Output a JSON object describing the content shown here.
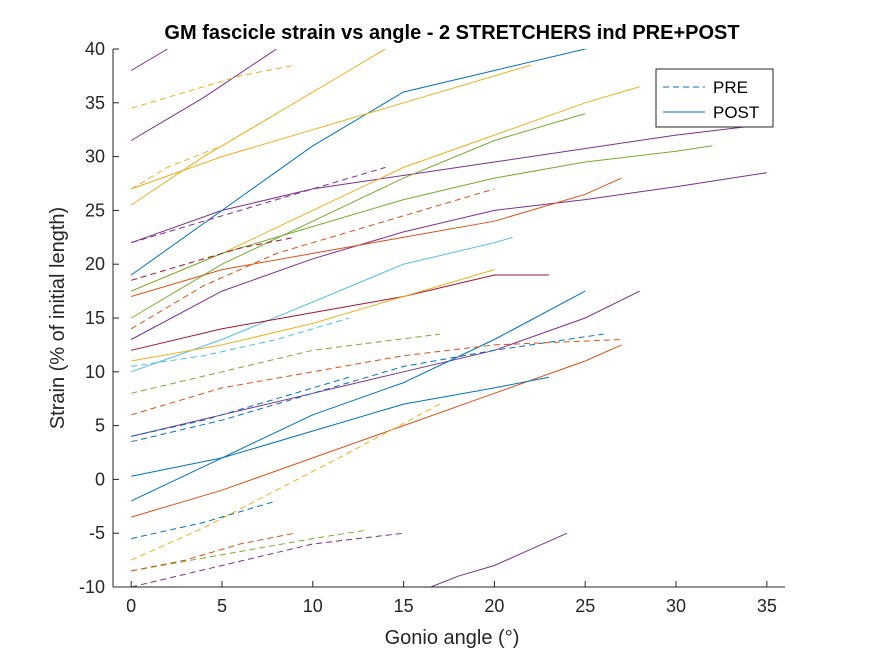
{
  "chart_data": {
    "type": "line",
    "title": "GM fascicle strain vs angle - 2 STRETCHERS ind PRE+POST",
    "xlabel": "Gonio angle (°)",
    "ylabel": "Strain (% of initial length)",
    "xlim": [
      -1,
      36
    ],
    "ylim": [
      -10,
      40
    ],
    "xticks": [
      0,
      5,
      10,
      15,
      20,
      25,
      30,
      35
    ],
    "yticks": [
      -10,
      -5,
      0,
      5,
      10,
      15,
      20,
      25,
      30,
      35,
      40
    ],
    "grid": false,
    "legend": {
      "position": "top-right",
      "entries": [
        {
          "label": "PRE",
          "style": "dashed",
          "color": "#0072BD"
        },
        {
          "label": "POST",
          "style": "solid",
          "color": "#0072BD"
        }
      ]
    },
    "colors": [
      "#0072BD",
      "#D95319",
      "#EDB120",
      "#7E2F8E",
      "#77AC30",
      "#4DBEEE",
      "#A2142F"
    ],
    "series": [
      {
        "color": "#7E2F8E",
        "style": "solid",
        "x": [
          0,
          5,
          10,
          20,
          30,
          35
        ],
        "y": [
          22,
          25,
          27,
          29.5,
          32,
          33
        ]
      },
      {
        "color": "#0072BD",
        "style": "solid",
        "x": [
          0,
          5,
          10,
          15,
          20,
          25,
          30
        ],
        "y": [
          19,
          25,
          31,
          36,
          38,
          40,
          42
        ]
      },
      {
        "color": "#EDB120",
        "style": "solid",
        "x": [
          0,
          4,
          8,
          12,
          14
        ],
        "y": [
          25.5,
          30,
          34,
          38,
          40
        ]
      },
      {
        "color": "#7E2F8E",
        "style": "solid",
        "x": [
          0,
          4,
          8
        ],
        "y": [
          31.5,
          35.5,
          40
        ]
      },
      {
        "color": "#7E2F8E",
        "style": "solid",
        "x": [
          0,
          2
        ],
        "y": [
          38,
          40
        ]
      },
      {
        "color": "#EDB120",
        "style": "solid",
        "x": [
          0,
          5,
          10,
          15,
          20,
          25,
          28
        ],
        "y": [
          17.5,
          21,
          25,
          29,
          32,
          35,
          36.5
        ]
      },
      {
        "color": "#EDB120",
        "style": "solid",
        "x": [
          0,
          5,
          10,
          15,
          20,
          22
        ],
        "y": [
          27,
          30,
          32.5,
          35,
          37.5,
          38.5
        ]
      },
      {
        "color": "#77AC30",
        "style": "solid",
        "x": [
          0,
          5,
          10,
          15,
          20,
          25,
          30,
          32
        ],
        "y": [
          17.5,
          21,
          23.5,
          26,
          28,
          29.5,
          30.5,
          31
        ]
      },
      {
        "color": "#77AC30",
        "style": "solid",
        "x": [
          0,
          5,
          10,
          15,
          20,
          25
        ],
        "y": [
          15,
          20,
          24,
          28,
          31.5,
          34
        ]
      },
      {
        "color": "#7E2F8E",
        "style": "solid",
        "x": [
          0,
          5,
          10,
          15,
          20,
          25,
          30,
          35
        ],
        "y": [
          13,
          17.5,
          20.5,
          23,
          25,
          26,
          27.2,
          28.5
        ]
      },
      {
        "color": "#D95319",
        "style": "solid",
        "x": [
          0,
          5,
          10,
          15,
          20,
          25,
          27
        ],
        "y": [
          17,
          19.5,
          21,
          22.5,
          24,
          26.5,
          28
        ]
      },
      {
        "color": "#4DBEEE",
        "style": "solid",
        "x": [
          0,
          5,
          10,
          15,
          20,
          21
        ],
        "y": [
          10,
          13,
          16.5,
          20,
          22,
          22.5
        ]
      },
      {
        "color": "#A2142F",
        "style": "solid",
        "x": [
          0,
          5,
          10,
          15,
          20,
          23
        ],
        "y": [
          12,
          14,
          15.5,
          17,
          19,
          19
        ]
      },
      {
        "color": "#EDB120",
        "style": "solid",
        "x": [
          0,
          5,
          10,
          15,
          20
        ],
        "y": [
          11,
          12.5,
          14.5,
          17,
          19.5
        ]
      },
      {
        "color": "#7E2F8E",
        "style": "solid",
        "x": [
          0,
          5,
          10,
          15,
          20,
          25,
          28
        ],
        "y": [
          4,
          6,
          8,
          10,
          12,
          15,
          17.5
        ]
      },
      {
        "color": "#0072BD",
        "style": "solid",
        "x": [
          0,
          5,
          10,
          15,
          20,
          25
        ],
        "y": [
          -2,
          2,
          6,
          9,
          13,
          17.5
        ]
      },
      {
        "color": "#D95319",
        "style": "solid",
        "x": [
          0,
          5,
          10,
          15,
          20,
          25,
          27
        ],
        "y": [
          -3.5,
          -1,
          2,
          5,
          8,
          11,
          12.5
        ]
      },
      {
        "color": "#0072BD",
        "style": "solid",
        "x": [
          0,
          5,
          10,
          15,
          20,
          23
        ],
        "y": [
          0.3,
          2,
          4.5,
          7,
          8.5,
          9.5
        ]
      },
      {
        "color": "#7E2F8E",
        "style": "solid",
        "x": [
          16.5,
          18,
          20,
          22,
          24
        ],
        "y": [
          -10,
          -9,
          -8,
          -6.5,
          -5
        ]
      },
      {
        "color": "#D95319",
        "style": "dashed",
        "x": [
          0,
          4,
          8,
          12,
          16,
          20
        ],
        "y": [
          14,
          18,
          21,
          23,
          25,
          27
        ]
      },
      {
        "color": "#0072BD",
        "style": "dashed",
        "x": [
          0,
          4,
          8,
          12
        ],
        "y": [
          4,
          5.5,
          7.5,
          9.5
        ]
      },
      {
        "color": "#EDB120",
        "style": "dashed",
        "x": [
          0,
          2,
          5,
          8
        ],
        "y": [
          27,
          29,
          31,
          34
        ]
      },
      {
        "color": "#77AC30",
        "style": "dashed",
        "x": [
          0,
          5,
          10,
          17
        ],
        "y": [
          8,
          10,
          12,
          13.5
        ]
      },
      {
        "color": "#0072BD",
        "style": "dashed",
        "x": [
          0,
          5,
          10,
          15,
          20,
          26
        ],
        "y": [
          3.5,
          5.5,
          8,
          10.5,
          12,
          13.5
        ]
      },
      {
        "color": "#D95319",
        "style": "dashed",
        "x": [
          0,
          5,
          10,
          15,
          20,
          27
        ],
        "y": [
          6,
          8.5,
          10,
          11.5,
          12.5,
          13
        ]
      },
      {
        "color": "#EDB120",
        "style": "dashed",
        "x": [
          0,
          4,
          8,
          12,
          17
        ],
        "y": [
          -7.5,
          -4.5,
          -1,
          2.5,
          7
        ]
      },
      {
        "color": "#0072BD",
        "style": "dashed",
        "x": [
          0,
          4,
          8
        ],
        "y": [
          -5.5,
          -4,
          -2
        ]
      },
      {
        "color": "#77AC30",
        "style": "dashed",
        "x": [
          0,
          5,
          10,
          13
        ],
        "y": [
          -8.5,
          -7,
          -5.5,
          -4.7
        ]
      },
      {
        "color": "#D95319",
        "style": "dashed",
        "x": [
          0,
          3,
          6,
          9
        ],
        "y": [
          -8.5,
          -7.5,
          -6,
          -5
        ]
      },
      {
        "color": "#7E2F8E",
        "style": "dashed",
        "x": [
          0,
          5,
          10,
          15
        ],
        "y": [
          -10,
          -8,
          -6,
          -5
        ]
      },
      {
        "color": "#7E2F8E",
        "style": "dashed",
        "x": [
          0,
          5,
          10,
          14
        ],
        "y": [
          22,
          24.5,
          27,
          29
        ]
      },
      {
        "color": "#EDB120",
        "style": "dashed",
        "x": [
          0,
          3,
          6,
          9
        ],
        "y": [
          34.5,
          36,
          37.5,
          38.5
        ]
      },
      {
        "color": "#4DBEEE",
        "style": "dashed",
        "x": [
          0,
          4,
          8,
          12
        ],
        "y": [
          10.5,
          11.5,
          13,
          15
        ]
      },
      {
        "color": "#A2142F",
        "style": "dashed",
        "x": [
          0,
          3,
          6,
          9
        ],
        "y": [
          18.5,
          20,
          21.5,
          22.5
        ]
      }
    ]
  }
}
